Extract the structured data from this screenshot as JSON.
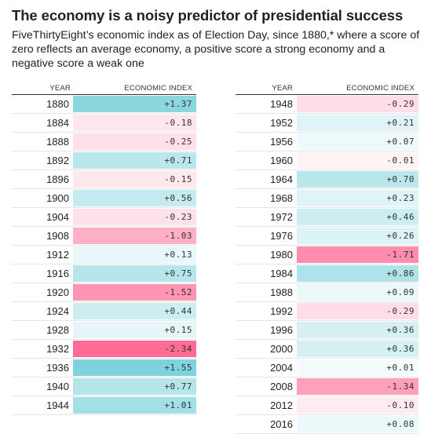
{
  "header": {
    "title": "The economy is a noisy predictor of presidential success",
    "subtitle": "FiveThirtyEight’s economic index as of Election Day, since 1880,* where a score of zero reflects an average economy, a positive score a strong economy and a negative score a weak one"
  },
  "chart_data": {
    "type": "table",
    "columns": [
      "YEAR",
      "ECONOMIC INDEX"
    ],
    "tables": [
      {
        "rows": [
          {
            "year": "1880",
            "value": 1.37,
            "label": "+1.37"
          },
          {
            "year": "1884",
            "value": -0.18,
            "label": "-0.18"
          },
          {
            "year": "1888",
            "value": -0.25,
            "label": "-0.25"
          },
          {
            "year": "1892",
            "value": 0.71,
            "label": "+0.71"
          },
          {
            "year": "1896",
            "value": -0.15,
            "label": "-0.15"
          },
          {
            "year": "1900",
            "value": 0.56,
            "label": "+0.56"
          },
          {
            "year": "1904",
            "value": -0.23,
            "label": "-0.23"
          },
          {
            "year": "1908",
            "value": -1.03,
            "label": "-1.03"
          },
          {
            "year": "1912",
            "value": 0.13,
            "label": "+0.13"
          },
          {
            "year": "1916",
            "value": 0.75,
            "label": "+0.75"
          },
          {
            "year": "1920",
            "value": -1.52,
            "label": "-1.52"
          },
          {
            "year": "1924",
            "value": 0.44,
            "label": "+0.44"
          },
          {
            "year": "1928",
            "value": 0.15,
            "label": "+0.15"
          },
          {
            "year": "1932",
            "value": -2.34,
            "label": "-2.34"
          },
          {
            "year": "1936",
            "value": 1.55,
            "label": "+1.55"
          },
          {
            "year": "1940",
            "value": 0.77,
            "label": "+0.77"
          },
          {
            "year": "1944",
            "value": 1.01,
            "label": "+1.01"
          }
        ]
      },
      {
        "rows": [
          {
            "year": "1948",
            "value": -0.29,
            "label": "-0.29"
          },
          {
            "year": "1952",
            "value": 0.21,
            "label": "+0.21"
          },
          {
            "year": "1956",
            "value": 0.07,
            "label": "+0.07"
          },
          {
            "year": "1960",
            "value": -0.01,
            "label": "-0.01"
          },
          {
            "year": "1964",
            "value": 0.7,
            "label": "+0.70"
          },
          {
            "year": "1968",
            "value": 0.23,
            "label": "+0.23"
          },
          {
            "year": "1972",
            "value": 0.46,
            "label": "+0.46"
          },
          {
            "year": "1976",
            "value": 0.26,
            "label": "+0.26"
          },
          {
            "year": "1980",
            "value": -1.71,
            "label": "-1.71"
          },
          {
            "year": "1984",
            "value": 0.86,
            "label": "+0.86"
          },
          {
            "year": "1988",
            "value": 0.09,
            "label": "+0.09"
          },
          {
            "year": "1992",
            "value": -0.29,
            "label": "-0.29"
          },
          {
            "year": "1996",
            "value": 0.36,
            "label": "+0.36"
          },
          {
            "year": "2000",
            "value": 0.36,
            "label": "+0.36"
          },
          {
            "year": "2004",
            "value": 0.01,
            "label": "+0.01"
          },
          {
            "year": "2008",
            "value": -1.34,
            "label": "-1.34"
          },
          {
            "year": "2012",
            "value": -0.1,
            "label": "-0.10"
          },
          {
            "year": "2016",
            "value": 0.08,
            "label": "+0.08"
          }
        ]
      }
    ]
  },
  "colors": {
    "positive": "#7fd3dc",
    "negative": "#ff6b96",
    "positive_max_value": 1.55,
    "negative_max_value": 2.34
  }
}
